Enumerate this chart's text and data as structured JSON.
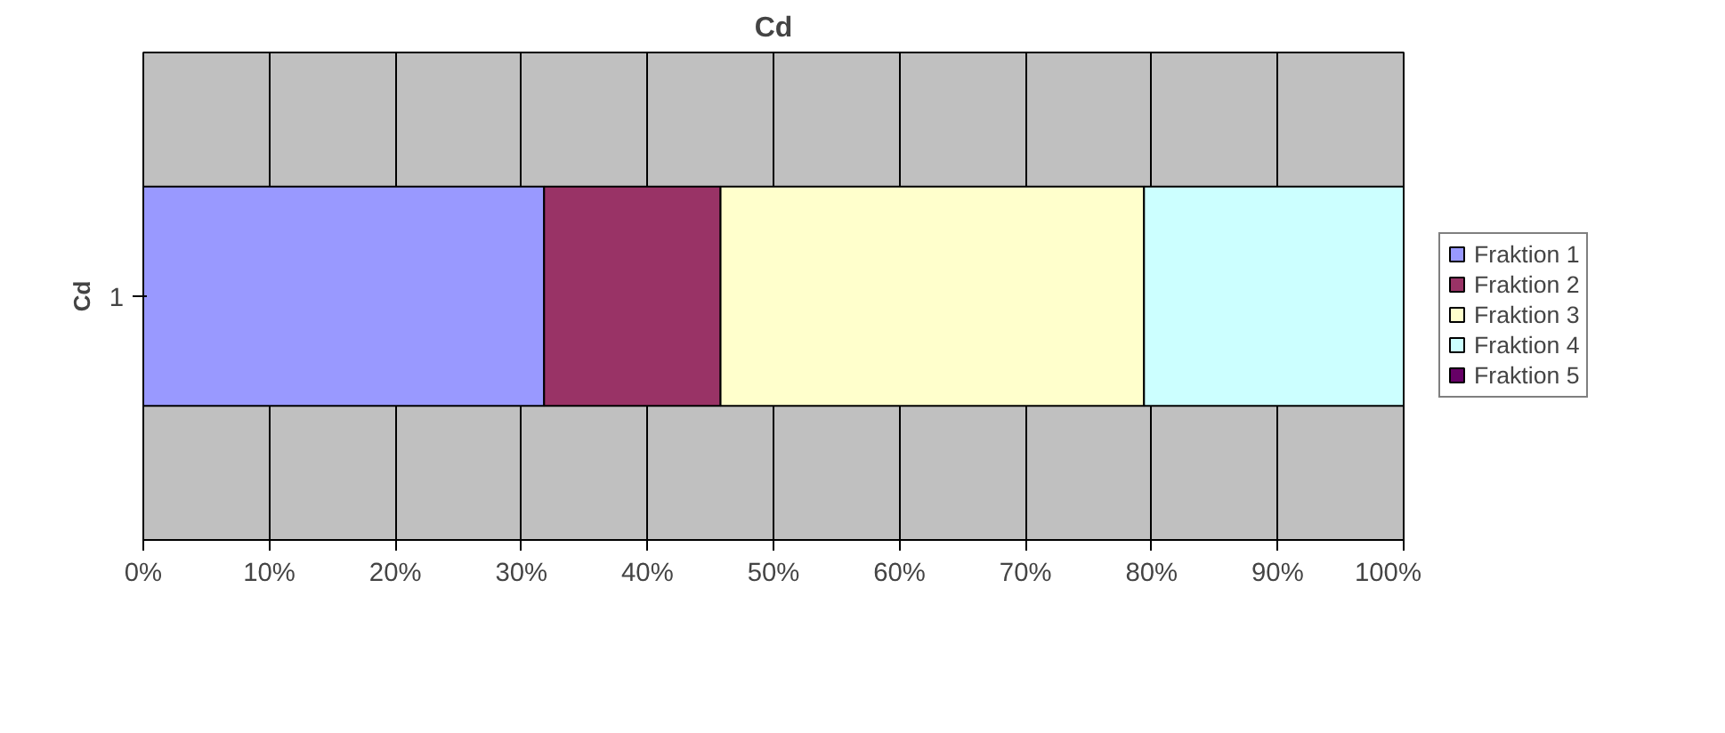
{
  "chart_data": {
    "type": "bar",
    "title": "Cd",
    "ylabel": "Cd",
    "orientation": "horizontal",
    "stacked": true,
    "categories": [
      "1"
    ],
    "series": [
      {
        "name": "Fraktion 1",
        "color": "#9999ff",
        "values": [
          31.8
        ]
      },
      {
        "name": "Fraktion 2",
        "color": "#993366",
        "values": [
          14.0
        ]
      },
      {
        "name": "Fraktion 3",
        "color": "#ffffcc",
        "values": [
          33.6
        ]
      },
      {
        "name": "Fraktion 4",
        "color": "#ccffff",
        "values": [
          20.6
        ]
      },
      {
        "name": "Fraktion 5",
        "color": "#660066",
        "values": [
          0
        ]
      }
    ],
    "xlim": [
      0,
      100
    ],
    "xticks": [
      {
        "value": 0,
        "label": "0%"
      },
      {
        "value": 10,
        "label": "10%"
      },
      {
        "value": 20,
        "label": "20%"
      },
      {
        "value": 30,
        "label": "30%"
      },
      {
        "value": 40,
        "label": "40%"
      },
      {
        "value": 50,
        "label": "50%"
      },
      {
        "value": 60,
        "label": "60%"
      },
      {
        "value": 70,
        "label": "70%"
      },
      {
        "value": 80,
        "label": "80%"
      },
      {
        "value": 90,
        "label": "90%"
      },
      {
        "value": 100,
        "label": "100%"
      }
    ],
    "grid": "x",
    "legend": "right"
  }
}
